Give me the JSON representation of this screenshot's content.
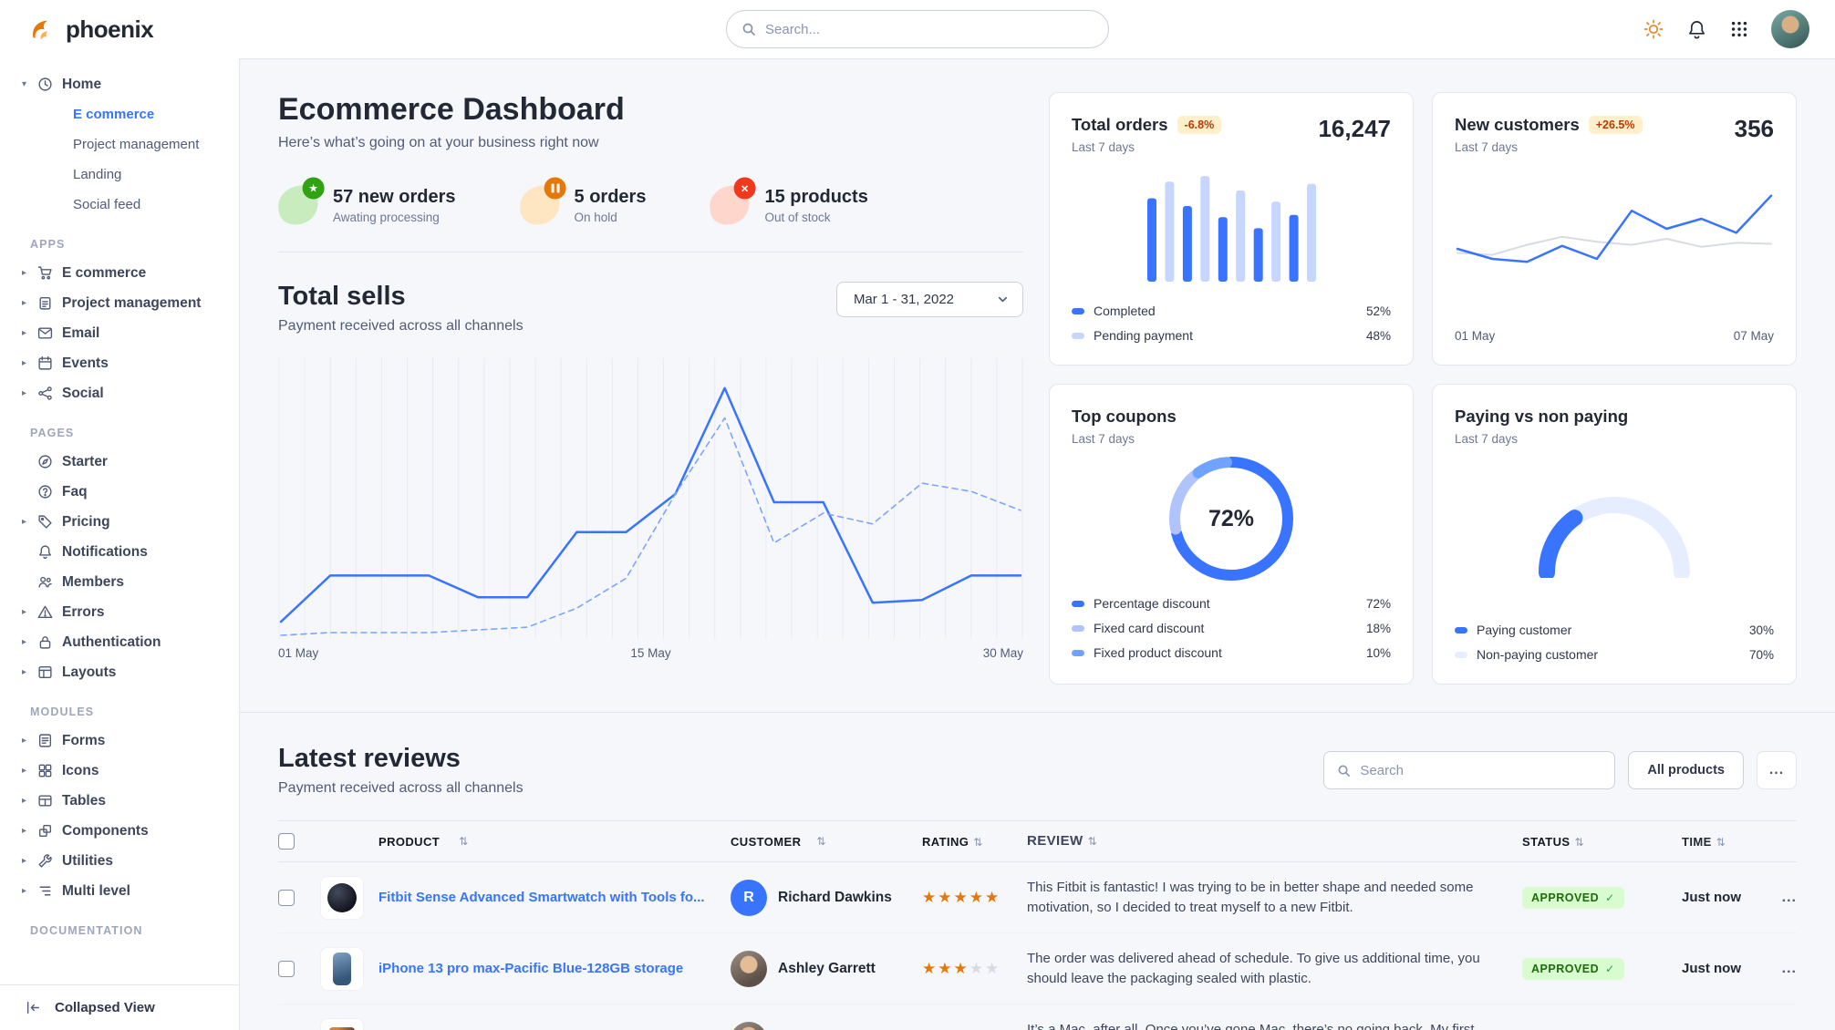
{
  "theme": {
    "primary": "#3874ff",
    "primary_pale": "#c7d6ff",
    "success_bg": "#d9fbd0",
    "success_text": "#1c6c09",
    "warning_bg": "#ffefca",
    "warning_text": "#bc3803",
    "star_color": "#e5780b",
    "body_bg": "#f5f7fa"
  },
  "navbar": {
    "brand": "phoenix",
    "search": {
      "placeholder": "Search..."
    },
    "icons": [
      "sun-icon",
      "bell-icon",
      "apps-grid-icon",
      "user-avatar"
    ]
  },
  "sidebar": {
    "home": {
      "caret": "▾",
      "label": "Home",
      "children": [
        {
          "label": "E commerce",
          "active": true
        },
        {
          "label": "Project management",
          "active": false
        },
        {
          "label": "Landing",
          "active": false
        },
        {
          "label": "Social feed",
          "active": false
        }
      ]
    },
    "sections": [
      {
        "label": "APPS",
        "items": [
          {
            "label": "E commerce",
            "icon": "cart-icon",
            "caret": "▸"
          },
          {
            "label": "Project management",
            "icon": "clipboard-icon",
            "caret": "▸"
          },
          {
            "label": "Email",
            "icon": "envelope-icon",
            "caret": "▸"
          },
          {
            "label": "Events",
            "icon": "calendar-icon",
            "caret": "▸"
          },
          {
            "label": "Social",
            "icon": "share-icon",
            "caret": "▸"
          }
        ]
      },
      {
        "label": "PAGES",
        "items": [
          {
            "label": "Starter",
            "icon": "compass-icon",
            "caret": ""
          },
          {
            "label": "Faq",
            "icon": "question-circle-icon",
            "caret": ""
          },
          {
            "label": "Pricing",
            "icon": "tag-icon",
            "caret": "▸"
          },
          {
            "label": "Notifications",
            "icon": "bell-icon",
            "caret": ""
          },
          {
            "label": "Members",
            "icon": "users-icon",
            "caret": ""
          },
          {
            "label": "Errors",
            "icon": "warning-icon",
            "caret": "▸"
          },
          {
            "label": "Authentication",
            "icon": "lock-icon",
            "caret": "▸"
          },
          {
            "label": "Layouts",
            "icon": "layout-icon",
            "caret": "▸"
          }
        ]
      },
      {
        "label": "MODULES",
        "items": [
          {
            "label": "Forms",
            "icon": "form-icon",
            "caret": "▸"
          },
          {
            "label": "Icons",
            "icon": "shapes-icon",
            "caret": "▸"
          },
          {
            "label": "Tables",
            "icon": "table-icon",
            "caret": "▸"
          },
          {
            "label": "Components",
            "icon": "components-icon",
            "caret": "▸"
          },
          {
            "label": "Utilities",
            "icon": "wrench-icon",
            "caret": "▸"
          },
          {
            "label": "Multi level",
            "icon": "list-icon",
            "caret": "▸"
          }
        ]
      },
      {
        "label": "DOCUMENTATION",
        "items": []
      }
    ],
    "footer": {
      "label": "Collapsed View"
    }
  },
  "header": {
    "title": "Ecommerce Dashboard",
    "subtitle": "Here’s what’s going on at your business right now"
  },
  "stats": [
    {
      "value": "57 new orders",
      "caption": "Awating processing"
    },
    {
      "value": "5 orders",
      "caption": "On hold"
    },
    {
      "value": "15 products",
      "caption": "Out of stock"
    }
  ],
  "total_sells": {
    "title": "Total sells",
    "subtitle": "Payment received across all channels",
    "date_range": "Mar 1 - 31, 2022",
    "x_labels": [
      "01 May",
      "15 May",
      "30 May"
    ]
  },
  "cards": {
    "total_orders": {
      "title": "Total orders",
      "badge": "-6.8%",
      "period": "Last 7 days",
      "value": "16,247",
      "legend": [
        {
          "label": "Completed",
          "value": "52%"
        },
        {
          "label": "Pending payment",
          "value": "48%"
        }
      ]
    },
    "new_customers": {
      "title": "New customers",
      "badge": "+26.5%",
      "period": "Last 7 days",
      "value": "356",
      "x_start": "01 May",
      "x_end": "07 May"
    },
    "top_coupons": {
      "title": "Top coupons",
      "period": "Last 7 days",
      "center_value": "72%",
      "legend": [
        {
          "label": "Percentage discount",
          "value": "72%"
        },
        {
          "label": "Fixed card discount",
          "value": "18%"
        },
        {
          "label": "Fixed product discount",
          "value": "10%"
        }
      ]
    },
    "paying": {
      "title": "Paying vs non paying",
      "period": "Last 7 days",
      "legend": [
        {
          "label": "Paying customer",
          "value": "30%"
        },
        {
          "label": "Non-paying customer",
          "value": "70%"
        }
      ]
    }
  },
  "chart_data": [
    {
      "id": "total_sells",
      "type": "line",
      "title": "Total sells",
      "x_labels": [
        "01 May",
        "15 May",
        "30 May"
      ],
      "ylim": [
        0,
        100
      ],
      "grid_vertical": 30,
      "series": [
        {
          "name": "current",
          "color": "#3874ff",
          "width": 2.5,
          "values": [
            5,
            22,
            22,
            22,
            14,
            14,
            38,
            38,
            52,
            91,
            49,
            49,
            12,
            13,
            22,
            22
          ]
        },
        {
          "name": "previous",
          "color": "#7da4ff",
          "width": 1.6,
          "dash": "6 5",
          "values": [
            0,
            1,
            1,
            1,
            2,
            3,
            10,
            21,
            52,
            80,
            34,
            45,
            41,
            56,
            53,
            46
          ]
        }
      ]
    },
    {
      "id": "total_orders",
      "type": "bar",
      "ylim": [
        0,
        100
      ],
      "colors": [
        "#3874ff",
        "#c7d6ff"
      ],
      "values": [
        75,
        90,
        68,
        95,
        58,
        82,
        48,
        72,
        60,
        88
      ]
    },
    {
      "id": "new_customers",
      "type": "line",
      "ylim": [
        0,
        100
      ],
      "x_labels": [
        "01 May",
        "07 May"
      ],
      "series": [
        {
          "name": "previous",
          "color": "#d8dbe3",
          "width": 2,
          "values": [
            36,
            34,
            44,
            52,
            47,
            44,
            50,
            42,
            46,
            45
          ]
        },
        {
          "name": "new customers",
          "color": "#3874ff",
          "width": 2.5,
          "values": [
            40,
            30,
            27,
            43,
            30,
            78,
            60,
            70,
            56,
            93
          ]
        }
      ]
    },
    {
      "id": "top_coupons",
      "type": "donut",
      "stroke": 12,
      "center_label": "72%",
      "slices": [
        {
          "label": "Percentage discount",
          "value": 72,
          "color": "#3874ff"
        },
        {
          "label": "Fixed card discount",
          "value": 18,
          "color": "#b0c3fb"
        },
        {
          "label": "Fixed product discount",
          "value": 10,
          "color": "#6fa3ff"
        }
      ]
    },
    {
      "id": "paying_vs_non_paying",
      "type": "gauge",
      "stroke": 18,
      "value": 30,
      "color": "#3874ff",
      "track_color": "#e5edff"
    }
  ],
  "reviews": {
    "title": "Latest reviews",
    "subtitle": "Payment received across all channels",
    "search_placeholder": "Search",
    "all_products_label": "All products",
    "more_label": "...",
    "sort_icon": "⇅",
    "columns": [
      "PRODUCT",
      "CUSTOMER",
      "RATING",
      "REVIEW",
      "STATUS",
      "TIME"
    ],
    "rows": [
      {
        "product": "Fitbit Sense Advanced Smartwatch with Tools fo...",
        "customer": "Richard Dawkins",
        "avatar": {
          "type": "initial",
          "text": "R"
        },
        "rating": 5,
        "review": "This Fitbit is fantastic! I was trying to be in better shape and needed some motivation, so I decided to treat myself to a new Fitbit.",
        "status": "APPROVED",
        "time": "Just now"
      },
      {
        "product": "iPhone 13 pro max-Pacific Blue-128GB storage",
        "customer": "Ashley Garrett",
        "avatar": {
          "type": "photo"
        },
        "rating": 3,
        "review": "The order was delivered ahead of schedule. To give us additional time, you should leave the packaging sealed with plastic.",
        "status": "APPROVED",
        "time": "Just now"
      },
      {
        "avatar": {
          "type": "photo"
        },
        "review": "It’s a Mac, after all. Once you’ve gone Mac, there’s no going back. My first Mac lasted..."
      }
    ]
  }
}
